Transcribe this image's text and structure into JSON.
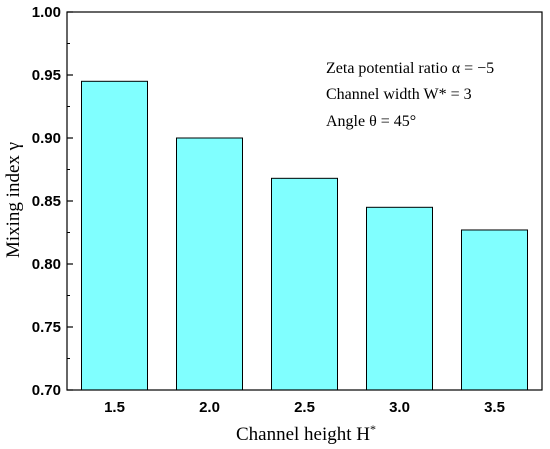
{
  "chart_data": {
    "type": "bar",
    "categories": [
      "1.5",
      "2.0",
      "2.5",
      "3.0",
      "3.5"
    ],
    "values": [
      0.945,
      0.9,
      0.868,
      0.845,
      0.827
    ],
    "xlabel_text": "Channel height H",
    "xlabel_sup": "*",
    "ylabel_text": "Mixing index γ",
    "ylim": [
      0.7,
      1.0
    ],
    "yticks": [
      "0.70",
      "0.75",
      "0.80",
      "0.85",
      "0.90",
      "0.95",
      "1.00"
    ],
    "annotations": [
      "Zeta potential ratio α = −5",
      "Channel width W* = 3",
      "Angle θ = 45°"
    ],
    "bar_color": "#80FFFF",
    "bar_edge_color": "#000000",
    "grid": false
  }
}
